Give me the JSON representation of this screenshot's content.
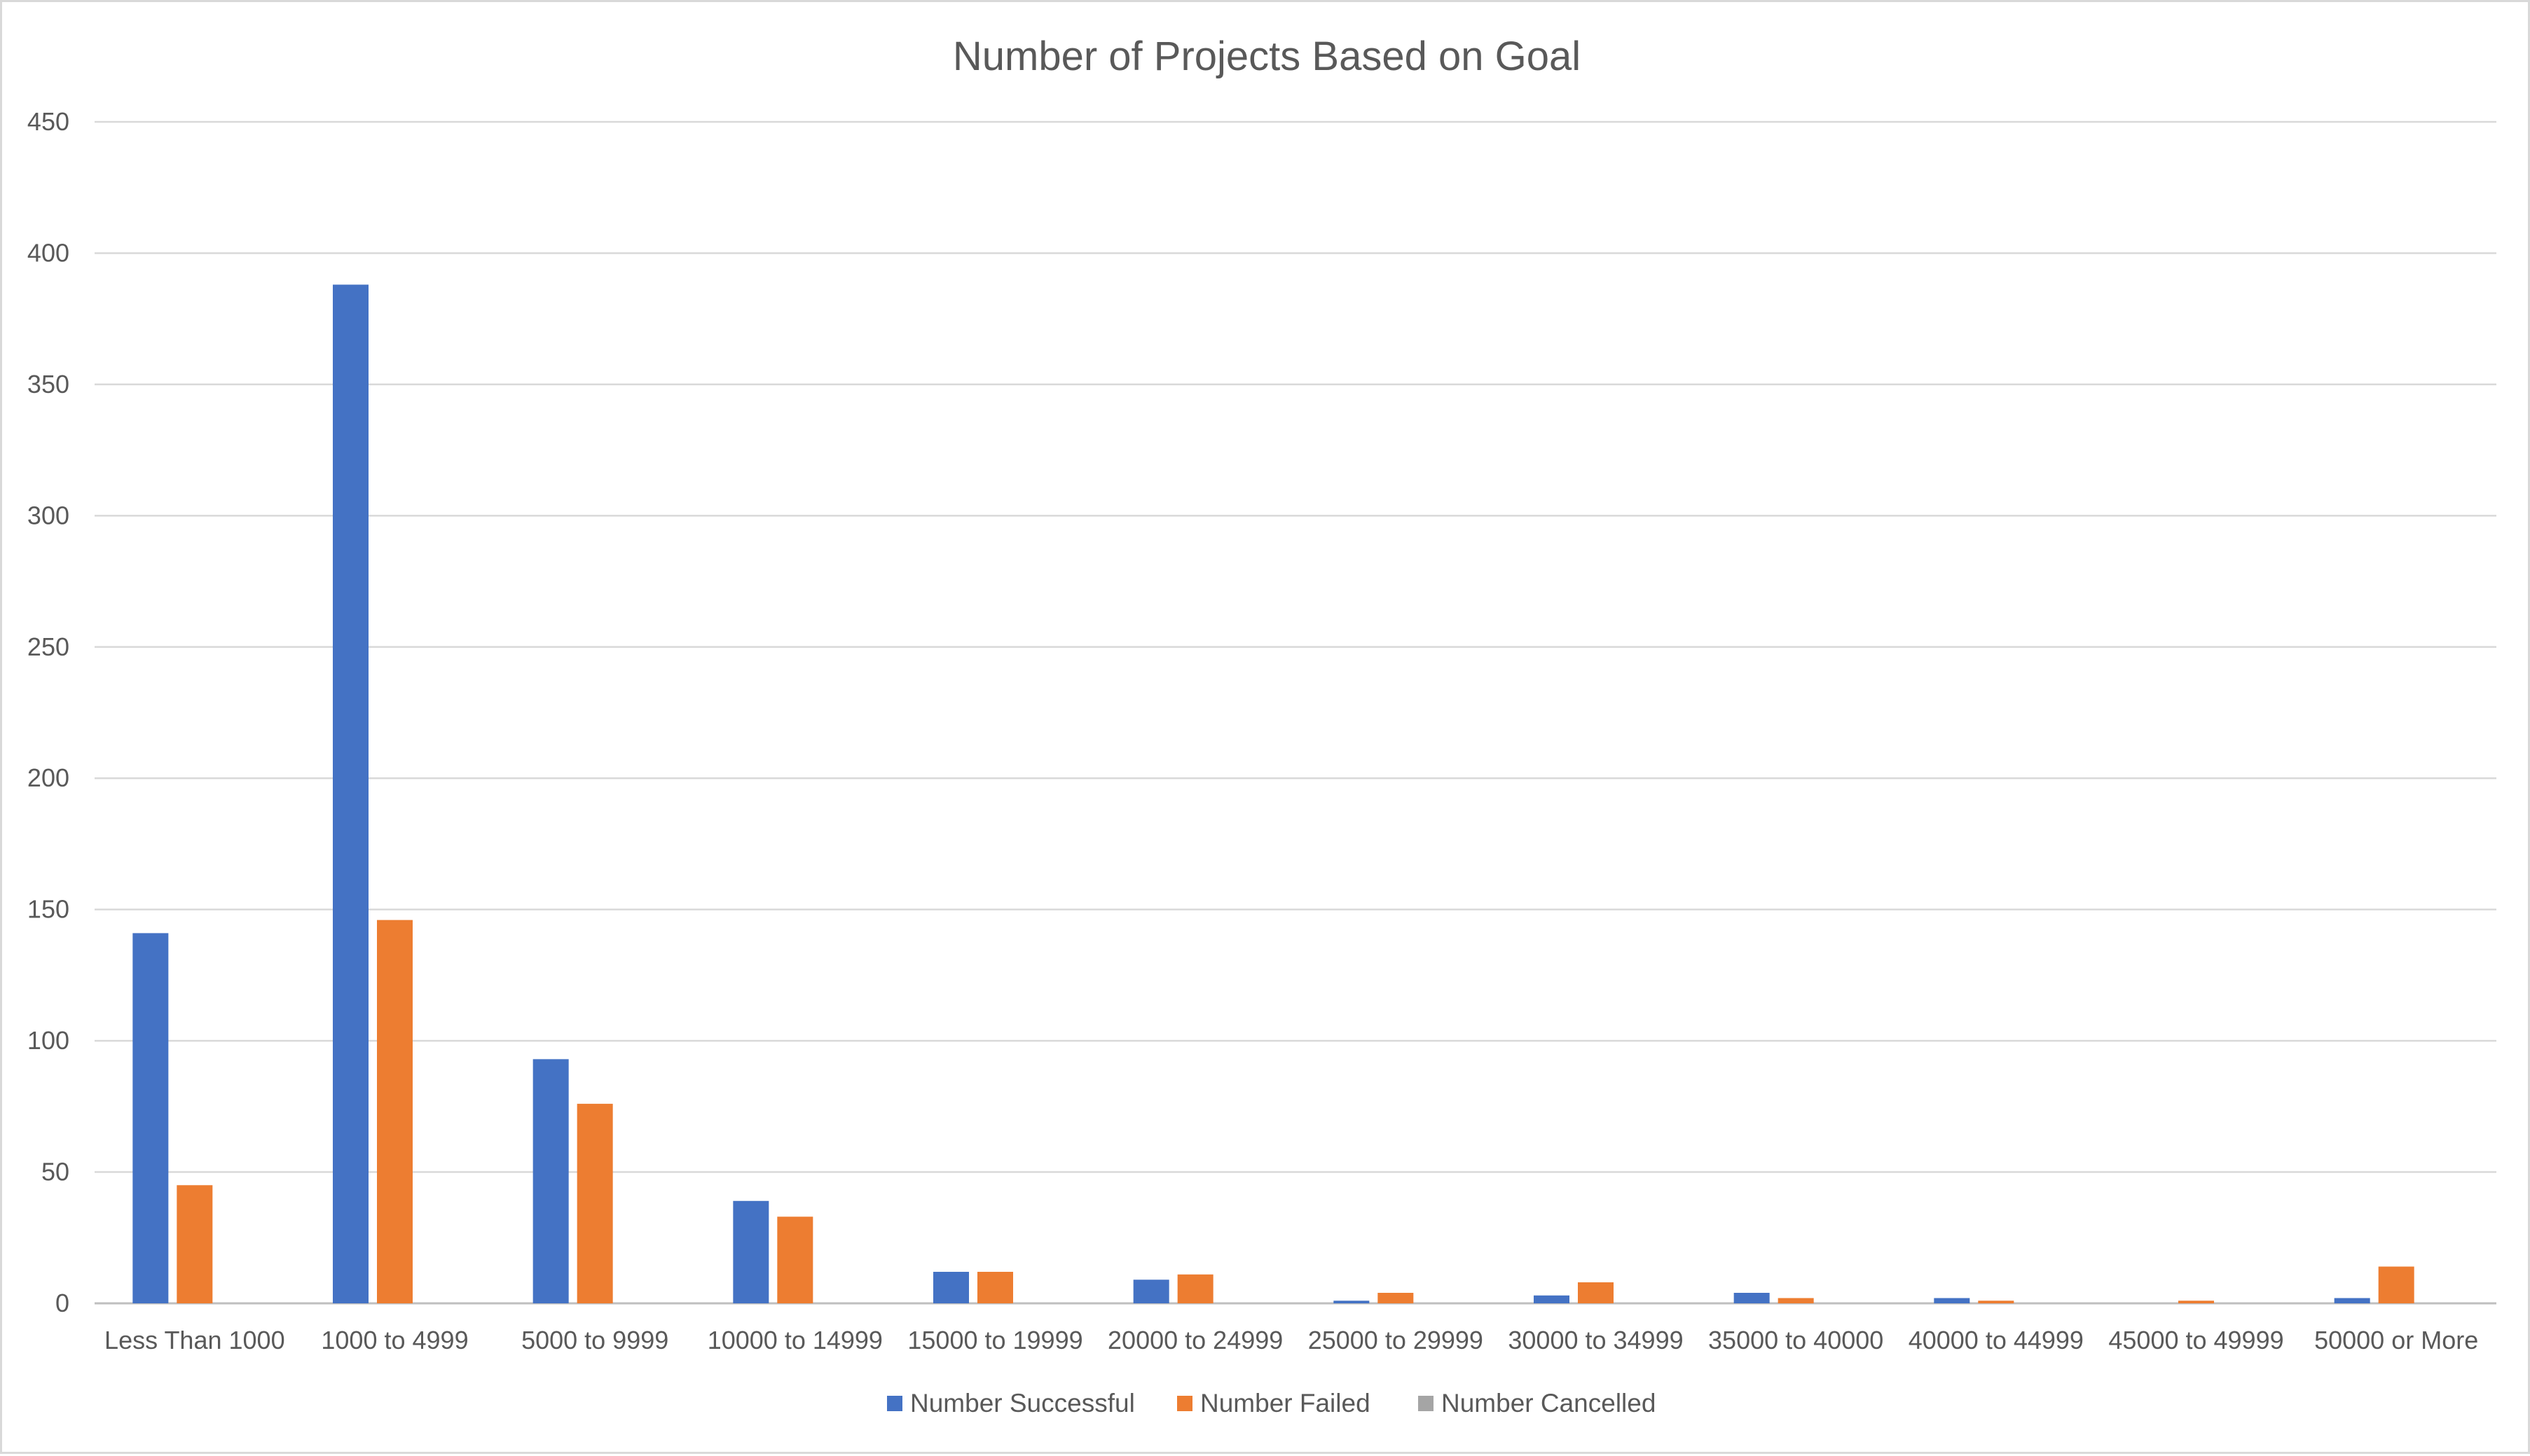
{
  "chart_data": {
    "type": "bar",
    "title": "Number of Projects Based on Goal",
    "xlabel": "",
    "ylabel": "",
    "ylim": [
      0,
      450
    ],
    "yticks": [
      0,
      50,
      100,
      150,
      200,
      250,
      300,
      350,
      400,
      450
    ],
    "grid": true,
    "legend_position": "bottom",
    "categories": [
      "Less Than 1000",
      "1000 to 4999",
      "5000 to 9999",
      "10000 to 14999",
      "15000 to 19999",
      "20000 to 24999",
      "25000 to 29999",
      "30000 to 34999",
      "35000 to 40000",
      "40000 to 44999",
      "45000 to 49999",
      "50000 or More"
    ],
    "series": [
      {
        "name": "Number Successful",
        "color": "#4472c4",
        "values": [
          141,
          388,
          93,
          39,
          12,
          9,
          1,
          3,
          4,
          2,
          0,
          2
        ]
      },
      {
        "name": "Number Failed",
        "color": "#ed7d31",
        "values": [
          45,
          146,
          76,
          33,
          12,
          11,
          4,
          8,
          2,
          1,
          1,
          14
        ]
      },
      {
        "name": "Number Cancelled",
        "color": "#a5a5a5",
        "values": [
          0,
          0,
          0,
          0,
          0,
          0,
          0,
          0,
          0,
          0,
          0,
          0
        ]
      }
    ]
  }
}
